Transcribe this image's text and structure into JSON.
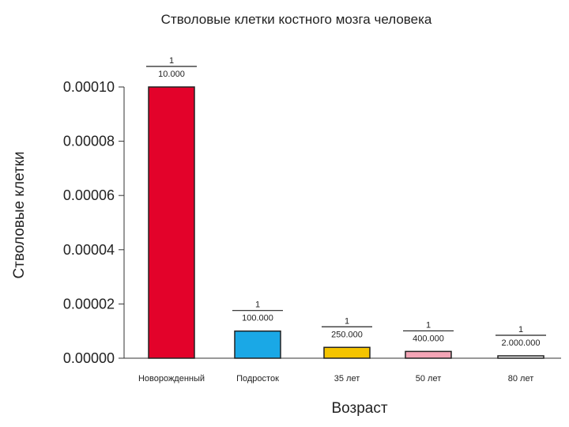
{
  "chart_data": {
    "type": "bar",
    "title": "Стволовые клетки костного мозга человека",
    "xlabel": "Возраст",
    "ylabel": "Стволовые клетки",
    "categories": [
      "Новорожденный",
      "Подросток",
      "35 лет",
      "50 лет",
      "80 лет"
    ],
    "values": [
      0.0001,
      1e-05,
      4e-06,
      2.5e-06,
      5e-07
    ],
    "annotations": [
      {
        "numerator": "1",
        "denominator": "10.000"
      },
      {
        "numerator": "1",
        "denominator": "100.000"
      },
      {
        "numerator": "1",
        "denominator": "250.000"
      },
      {
        "numerator": "1",
        "denominator": "400.000"
      },
      {
        "numerator": "1",
        "denominator": "2.000.000"
      }
    ],
    "colors": [
      "#e3022a",
      "#1aa8e6",
      "#f5c400",
      "#f4a5b6",
      "#f2f2f2"
    ],
    "ylim": [
      0,
      0.0001
    ],
    "yticks": [
      "0.00000",
      "0.00002",
      "0.00004",
      "0.00006",
      "0.00008",
      "0.00010"
    ],
    "grid": false,
    "legend": "none"
  }
}
